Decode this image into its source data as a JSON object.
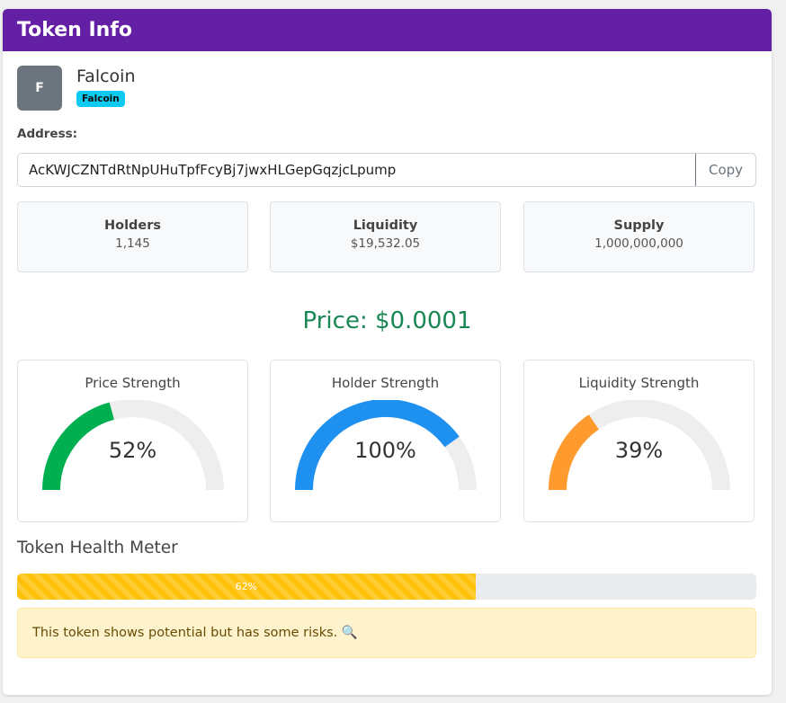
{
  "header": {
    "title": "Token Info"
  },
  "token": {
    "initial": "F",
    "name": "Falcoin",
    "badge": "Falcoin"
  },
  "address": {
    "label": "Address:",
    "value": "AcKWJCZNTdRtNpUHuTpfFcyBj7jwxHLGepGqzjcLpump",
    "copy_label": "Copy"
  },
  "stats": [
    {
      "label": "Holders",
      "value": "1,145"
    },
    {
      "label": "Liquidity",
      "value": "$19,532.05"
    },
    {
      "label": "Supply",
      "value": "1,000,000,000"
    }
  ],
  "price": {
    "text": "Price: $0.0001"
  },
  "gauges": [
    {
      "title": "Price Strength",
      "value_text": "52%",
      "fraction": 0.52,
      "color": "#00b050"
    },
    {
      "title": "Holder Strength",
      "value_text": "100%",
      "fraction": 1.0,
      "color": "#1e90f0"
    },
    {
      "title": "Liquidity Strength",
      "value_text": "39%",
      "fraction": 0.39,
      "color": "#ff9a2e"
    }
  ],
  "health": {
    "title": "Token Health Meter",
    "percent_text": "62%",
    "fraction": 0.62,
    "message": "This token shows potential but has some risks. 🔍"
  },
  "colors": {
    "header": "#6320a5",
    "price": "#198754",
    "bar": "#ffc107",
    "track": "#eeeeee"
  }
}
